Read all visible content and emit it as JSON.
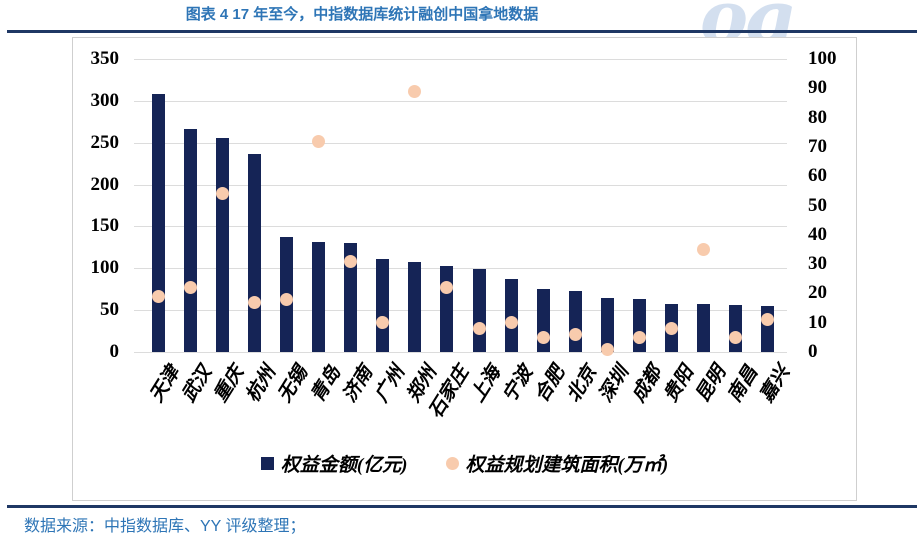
{
  "header": {
    "title": "图表 4 17 年至今，中指数据库统计融创中国拿地数据"
  },
  "footer": {
    "source": "数据来源：中指数据库、YY 评级整理；"
  },
  "watermark": {
    "text": "og"
  },
  "colors": {
    "bar": "#152456",
    "dot": "#F8CBAD",
    "title": "#2E75B6",
    "source_text": "#2E75B6",
    "rule": "#1F3864",
    "grid": "#DCDCDC",
    "watermark": "rgba(158,184,219,0.45)"
  },
  "chart_data": {
    "type": "bar",
    "title": "图表 4 17 年至今，中指数据库统计融创中国拿地数据",
    "categories": [
      "天津",
      "武汉",
      "重庆",
      "杭州",
      "无锡",
      "青岛",
      "济南",
      "广州",
      "郑州",
      "石家庄",
      "上海",
      "宁波",
      "合肥",
      "北京",
      "深圳",
      "成都",
      "贵阳",
      "昆明",
      "南昌",
      "嘉兴"
    ],
    "series": [
      {
        "name": "权益金额(亿元)",
        "type": "bar",
        "axis": "left",
        "marker": "square",
        "color": "#152456",
        "values": [
          308,
          266,
          256,
          236,
          137,
          131,
          130,
          111,
          107,
          103,
          99,
          87,
          75,
          73,
          64,
          63,
          57,
          57,
          56,
          55
        ]
      },
      {
        "name": "权益规划建筑面积(万㎡)",
        "type": "scatter",
        "axis": "right",
        "marker": "circle",
        "color": "#F8CBAD",
        "values": [
          19,
          22,
          54,
          17,
          18,
          72,
          31,
          10,
          89,
          22,
          8,
          10,
          5,
          6,
          1,
          5,
          8,
          35,
          5,
          11
        ]
      }
    ],
    "left_axis": {
      "min": 0,
      "max": 350,
      "step": 50,
      "ticks": [
        350,
        300,
        250,
        200,
        150,
        100,
        50,
        0
      ]
    },
    "right_axis": {
      "min": 0,
      "max": 100,
      "step": 10,
      "ticks": [
        100,
        90,
        80,
        70,
        60,
        50,
        40,
        30,
        20,
        10,
        0
      ]
    },
    "grid": true,
    "legend_position": "bottom"
  }
}
